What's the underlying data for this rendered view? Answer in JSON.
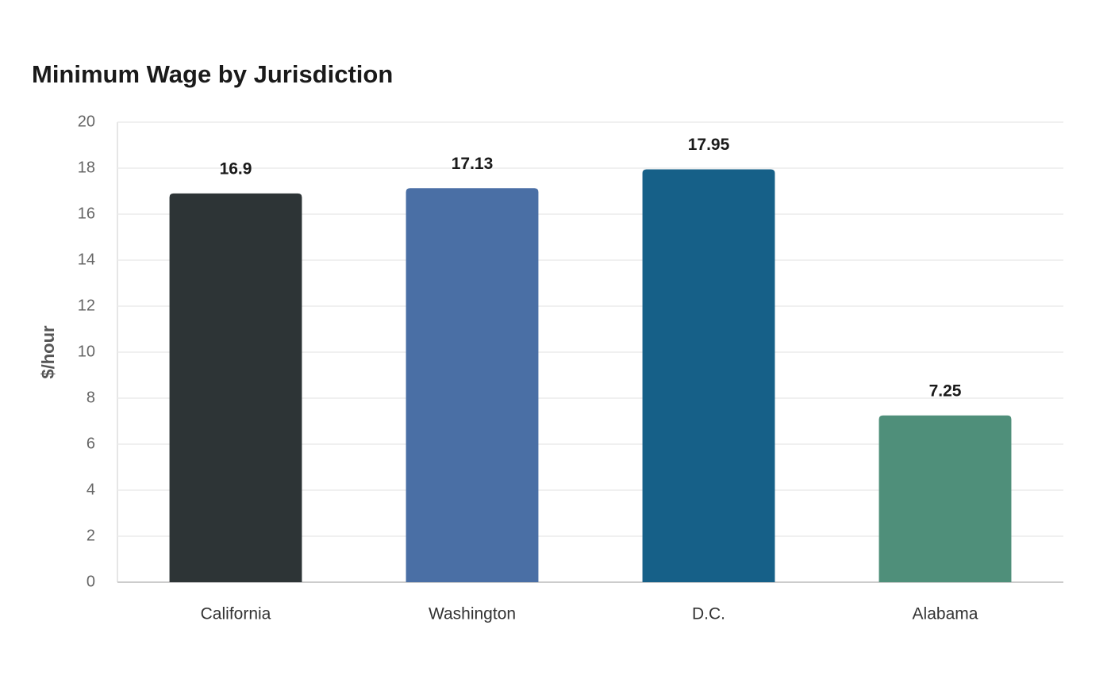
{
  "chart_data": {
    "type": "bar",
    "title": "Minimum Wage by Jurisdiction",
    "y_label": "$/hour",
    "categories": [
      "California",
      "Washington",
      "D.C.",
      "Alabama"
    ],
    "values": [
      16.9,
      17.13,
      17.95,
      7.25
    ],
    "colors": [
      "#2d3436",
      "#4a6fa5",
      "#166088",
      "#4f8f7a"
    ],
    "ylim": [
      0,
      20
    ],
    "yticks": [
      0,
      2,
      4,
      6,
      8,
      10,
      12,
      14,
      16,
      18,
      20
    ],
    "grid": true
  }
}
